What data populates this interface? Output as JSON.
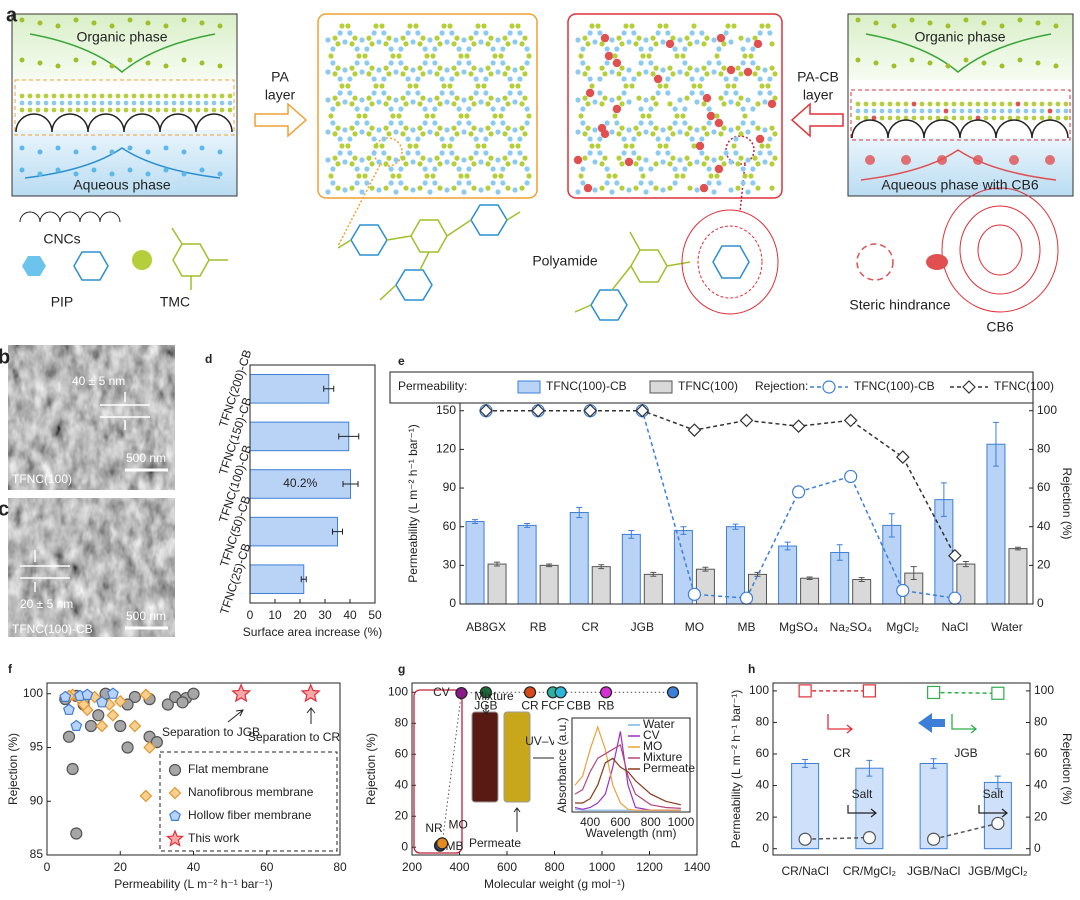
{
  "diagram": {
    "panel_label": "a",
    "left_box": {
      "top": "Organic phase",
      "bottom": "Aqueous phase"
    },
    "pa_arrow": [
      "PA",
      "layer"
    ],
    "pacb_arrow": [
      "PA-CB",
      "layer"
    ],
    "right_box": {
      "top": "Organic phase",
      "bottom": "Aqueous phase with CB6"
    },
    "legend": {
      "cncs": "CNCs",
      "pip": "PIP",
      "tmc": "TMC",
      "polyamide": "Polyamide",
      "steric": "Steric hindrance",
      "cb6": "CB6"
    }
  },
  "images": {
    "b": {
      "panel_label": "b",
      "thickness": "40 ± 5 nm",
      "scale": "500 nm",
      "sample": "TFNC(100)"
    },
    "c": {
      "panel_label": "c",
      "thickness": "20 ± 5 nm",
      "scale": "500 nm",
      "sample": "TFNC(100)-CB"
    }
  },
  "chart_data": [
    {
      "type": "bar",
      "orientation": "horizontal",
      "panel_label": "d",
      "categories": [
        "TFNC(200)-CB",
        "TFNC(150)-CB",
        "TFNC(100)-CB",
        "TFNC(50)-CB",
        "TFNC(25)-CB"
      ],
      "values": [
        31.5,
        39.5,
        40.2,
        35,
        21.5
      ],
      "errors": [
        2,
        4,
        3,
        2,
        1
      ],
      "value_labels": [
        null,
        null,
        "40.2%",
        null,
        null
      ],
      "color": "#b9d3f7",
      "edge_color": "#3d7fd8",
      "xlim": [
        0,
        50
      ],
      "xticks": [
        0,
        10,
        20,
        30,
        40,
        50
      ],
      "xlabel": "Surface area increase (%)"
    },
    {
      "type": "bar",
      "panel_label": "e",
      "legend_titles": [
        "Permeability:",
        "Rejection:"
      ],
      "categories": [
        "AB8GX",
        "RB",
        "CR",
        "JGB",
        "MO",
        "MB",
        "MgSO₄",
        "Na₂SO₄",
        "MgCl₂",
        "NaCl",
        "Water"
      ],
      "series": [
        {
          "name": "TFNC(100)-CB",
          "kind": "bar",
          "color": "#b9d3f7",
          "edge_color": "#3d7fd8",
          "values": [
            64,
            61,
            71,
            54,
            57,
            60,
            45,
            40,
            61,
            81,
            124
          ],
          "errors": [
            1.5,
            1.5,
            4,
            3,
            3,
            2,
            3,
            6,
            9,
            13,
            17
          ]
        },
        {
          "name": "TFNC(100)",
          "kind": "bar",
          "color": "#d9d9d9",
          "edge_color": "#555555",
          "values": [
            31,
            30,
            29,
            23,
            27,
            23,
            20,
            19,
            24,
            31,
            43
          ],
          "errors": [
            1.5,
            1,
            1.5,
            1.5,
            1.5,
            1.5,
            1,
            1.5,
            5,
            2,
            1
          ]
        },
        {
          "name": "TFNC(100)-CB",
          "kind": "line",
          "axis": "y2",
          "marker": "circle",
          "dashed": true,
          "color": "#3d7fd8",
          "values": [
            100,
            100,
            100,
            100,
            5,
            3,
            58,
            66,
            7,
            3,
            null
          ]
        },
        {
          "name": "TFNC(100)",
          "kind": "line",
          "axis": "y2",
          "marker": "diamond",
          "dashed": true,
          "color": "#333333",
          "values": [
            100,
            100,
            100,
            100,
            90,
            95,
            92,
            95,
            76,
            25,
            null
          ]
        }
      ],
      "ylim": [
        0,
        156
      ],
      "yticks": [
        0,
        30,
        60,
        90,
        120,
        150
      ],
      "ylabel": "Permeability (L m⁻² h⁻¹ bar⁻¹)",
      "y2lim": [
        0,
        104
      ],
      "y2ticks": [
        0,
        20,
        40,
        60,
        80,
        100
      ],
      "y2label": "Rejection (%)"
    },
    {
      "type": "scatter",
      "panel_label": "f",
      "legend": true,
      "series": [
        {
          "name": "Flat membrane",
          "marker": "circle",
          "color": "#a6a6a6",
          "edge_color": "#555555",
          "x": [
            8,
            7,
            6,
            5,
            8,
            10,
            12,
            14,
            16,
            20,
            22,
            24,
            28,
            28,
            30,
            33,
            35,
            38,
            40,
            37,
            22,
            10
          ],
          "values": [
            87,
            93,
            96,
            99.5,
            99.8,
            99,
            97,
            98,
            100,
            97,
            95,
            99.7,
            99.5,
            96,
            95.5,
            99,
            99.7,
            99.6,
            100,
            99.2,
            99,
            99.4
          ]
        },
        {
          "name": "Nanofibrous membrane",
          "marker": "diamond",
          "color": "#f8cf8f",
          "edge_color": "#e0962e",
          "x": [
            7,
            9,
            11,
            15,
            17,
            18,
            20,
            24,
            27,
            28,
            27,
            10,
            6,
            13
          ],
          "values": [
            99.9,
            99.5,
            98.5,
            97,
            99,
            98,
            99.3,
            97,
            99.9,
            95,
            90.5,
            99,
            99.8,
            99.7
          ]
        },
        {
          "name": "Hollow fiber membrane",
          "marker": "pentagon",
          "color": "#b9d3f7",
          "edge_color": "#3d7fd8",
          "x": [
            6,
            8,
            9,
            15,
            18,
            5,
            11
          ],
          "values": [
            98.5,
            97,
            99.8,
            99.2,
            100,
            99.7,
            99.9
          ]
        },
        {
          "name": "This work",
          "marker": "star",
          "color": "#f6a7a7",
          "edge_color": "#e0303a",
          "x": [
            53,
            72
          ],
          "values": [
            100,
            100
          ]
        }
      ],
      "annotations": [
        "Separation to JGB",
        "Separation to CR"
      ],
      "xlim": [
        0,
        80
      ],
      "xticks": [
        0,
        20,
        40,
        60,
        80
      ],
      "xlabel": "Permeability (L m⁻² h⁻¹ bar⁻¹)",
      "ylim": [
        85,
        101
      ],
      "yticks": [
        85,
        90,
        95,
        100
      ],
      "ylabel": "Rejection (%)"
    },
    {
      "type": "scatter",
      "panel_label": "g",
      "connect": true,
      "categories": [
        "NR",
        "MB",
        "MO",
        "CV",
        "JGB",
        "CR",
        "FCF",
        "CBB",
        "RB",
        null
      ],
      "x": [
        318,
        320,
        327,
        408,
        511,
        697,
        793,
        826,
        1017,
        1299
      ],
      "values": [
        1,
        1.5,
        2.5,
        99.5,
        100,
        100,
        100,
        100,
        100,
        100
      ],
      "colors": [
        "#7b1a3a",
        "#1f5fbf",
        "#e58a1f",
        "#8b1a8b",
        "#1d6b3a",
        "#d9481b",
        "#2bb3a1",
        "#2bb8d8",
        "#d62fd6",
        "#3b7fd8"
      ],
      "annotations": [
        "Mixture",
        "Permeate",
        "UV–Vis"
      ],
      "xlim": [
        200,
        1400
      ],
      "xticks": [
        200,
        400,
        600,
        800,
        1000,
        1200,
        1400
      ],
      "xlabel": "Molecular weight (g mol⁻¹)",
      "ylim": [
        -5,
        106
      ],
      "yticks": [
        0,
        20,
        40,
        60,
        80,
        100
      ],
      "ylabel": "Rejection (%)"
    },
    {
      "type": "line",
      "legend": true,
      "x": [
        300,
        350,
        400,
        450,
        500,
        550,
        600,
        650,
        700,
        800,
        900,
        1000
      ],
      "series": [
        {
          "name": "Water",
          "color": "#7fb3e6",
          "values": [
            0.03,
            0.02,
            0.02,
            0.02,
            0.02,
            0.02,
            0.02,
            0.02,
            0.02,
            0.02,
            0.02,
            0.02
          ]
        },
        {
          "name": "CV",
          "color": "#9b30c8",
          "values": [
            0.05,
            0.03,
            0.05,
            0.1,
            0.2,
            0.5,
            0.9,
            0.3,
            0.05,
            0.02,
            0.02,
            0.02
          ]
        },
        {
          "name": "MO",
          "color": "#e8a33a",
          "values": [
            0.3,
            0.4,
            0.7,
            0.95,
            0.7,
            0.3,
            0.1,
            0.03,
            0.02,
            0.02,
            0.02,
            0.02
          ]
        },
        {
          "name": "Mixture",
          "color": "#b5477a",
          "values": [
            0.2,
            0.25,
            0.45,
            0.6,
            0.65,
            0.7,
            0.75,
            0.4,
            0.2,
            0.08,
            0.05,
            0.04
          ]
        },
        {
          "name": "Permeate",
          "color": "#8a3a1a",
          "values": [
            0.1,
            0.1,
            0.15,
            0.3,
            0.55,
            0.6,
            0.5,
            0.45,
            0.35,
            0.2,
            0.12,
            0.08
          ]
        }
      ],
      "xlim": [
        280,
        1060
      ],
      "xticks": [
        400,
        600,
        800,
        1000
      ],
      "xlabel": "Wavelength (nm)",
      "ylim": [
        0,
        1.05
      ],
      "ylabel": "Absorbance (a.u.)"
    },
    {
      "type": "bar",
      "panel_label": "h",
      "categories": [
        "CR/NaCl",
        "CR/MgCl₂",
        "JGB/NaCl",
        "JGB/MgCl₂"
      ],
      "series": [
        {
          "kind": "bar",
          "color": "#cfe1fa",
          "edge_color": "#3d7fd8",
          "values": [
            54,
            51,
            54,
            42
          ],
          "errors": [
            2.5,
            5,
            3,
            4
          ]
        },
        {
          "name": "CR",
          "kind": "line",
          "axis": "y2",
          "marker": "square",
          "dashed": true,
          "color": "#e0303a",
          "values": [
            100,
            100,
            null,
            null
          ]
        },
        {
          "name": "JGB",
          "kind": "line",
          "axis": "y2",
          "marker": "square",
          "dashed": true,
          "color": "#2fae4a",
          "values": [
            null,
            null,
            99,
            98.5
          ]
        },
        {
          "name": "Salt",
          "kind": "line",
          "axis": "y2",
          "marker": "circle",
          "dashed": true,
          "color": "#555555",
          "values": [
            6,
            7,
            null,
            null
          ]
        },
        {
          "name": "Salt",
          "kind": "line",
          "axis": "y2",
          "marker": "circle",
          "dashed": true,
          "color": "#555555",
          "values": [
            null,
            null,
            6,
            16
          ]
        }
      ],
      "ylim": [
        -4,
        105
      ],
      "yticks": [
        0,
        20,
        40,
        60,
        80,
        100
      ],
      "ylabel": "Permeability (L m⁻² h⁻¹ bar⁻¹)",
      "y2lim": [
        -4,
        105
      ],
      "y2ticks": [
        0,
        20,
        40,
        60,
        80,
        100
      ],
      "y2label": "Rejection (%)"
    }
  ]
}
